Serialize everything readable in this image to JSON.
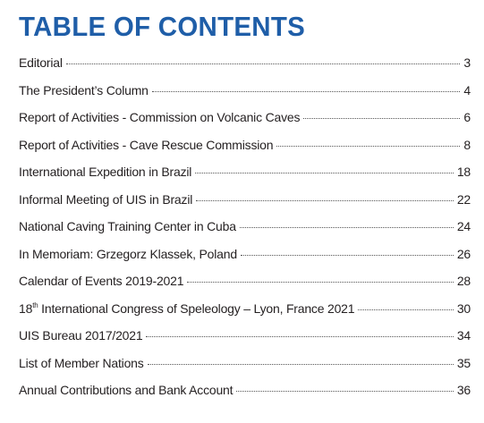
{
  "header": {
    "title": "TABLE OF CONTENTS"
  },
  "entries": [
    {
      "title": "Editorial",
      "page": 3
    },
    {
      "title": "The President’s Column",
      "page": 4
    },
    {
      "title": "Report of Activities - Commission on Volcanic Caves",
      "page": 6
    },
    {
      "title": "Report of Activities - Cave Rescue Commission",
      "page": 8
    },
    {
      "title": "International Expedition in Brazil",
      "page": 18
    },
    {
      "title": "Informal Meeting of UIS in Brazil",
      "page": 22
    },
    {
      "title": "National Caving Training Center in Cuba",
      "page": 24
    },
    {
      "title": "In Memoriam: Grzegorz Klassek, Poland",
      "page": 26
    },
    {
      "title": "Calendar of Events 2019-2021",
      "page": 28
    },
    {
      "title_prefix": "18",
      "title_superscript": "th",
      "title": "International Congress of Speleology – Lyon, France 2021",
      "page": 30
    },
    {
      "title": "UIS Bureau 2017/2021",
      "page": 34
    },
    {
      "title": "List of Member Nations",
      "page": 35
    },
    {
      "title": "Annual Contributions and Bank Account",
      "page": 36
    }
  ]
}
